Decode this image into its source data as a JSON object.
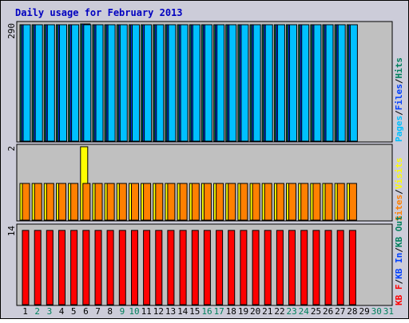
{
  "chart_data": {
    "type": "bar",
    "title": "Daily usage for February 2013",
    "days": [
      "1",
      "2",
      "3",
      "4",
      "5",
      "6",
      "7",
      "8",
      "9",
      "10",
      "11",
      "12",
      "13",
      "14",
      "15",
      "16",
      "17",
      "18",
      "19",
      "20",
      "21",
      "22",
      "23",
      "24",
      "25",
      "26",
      "27",
      "28",
      "29",
      "30",
      "31"
    ],
    "weekend_days": [
      "2",
      "3",
      "9",
      "10",
      "16",
      "17",
      "23",
      "24",
      "30",
      "31"
    ],
    "panels": [
      {
        "id": "top",
        "max_label": "290",
        "ylim": [
          0,
          290
        ],
        "legend": [
          {
            "label": "Hits",
            "color": "#00805c"
          },
          {
            "label": "/",
            "color": "#000000"
          },
          {
            "label": "Files",
            "color": "#0040ff"
          },
          {
            "label": "/",
            "color": "#000000"
          },
          {
            "label": "Pages",
            "color": "#00c0ff"
          }
        ],
        "series": [
          {
            "name": "Hits",
            "color": "#00805c",
            "values": [
              288,
              288,
              288,
              288,
              288,
              290,
              288,
              288,
              288,
              288,
              288,
              288,
              288,
              288,
              288,
              288,
              288,
              288,
              288,
              288,
              288,
              288,
              288,
              288,
              288,
              288,
              288,
              288
            ]
          },
          {
            "name": "Files",
            "color": "#0040ff",
            "values": [
              288,
              288,
              288,
              288,
              288,
              290,
              288,
              288,
              288,
              288,
              288,
              288,
              288,
              288,
              288,
              288,
              288,
              288,
              288,
              288,
              288,
              288,
              288,
              288,
              288,
              288,
              288,
              288
            ]
          },
          {
            "name": "Pages",
            "color": "#00c0ff",
            "values": [
              288,
              288,
              288,
              288,
              288,
              288,
              288,
              288,
              288,
              288,
              288,
              288,
              288,
              288,
              288,
              288,
              288,
              288,
              288,
              288,
              288,
              288,
              288,
              288,
              288,
              288,
              288,
              288
            ]
          }
        ]
      },
      {
        "id": "middle",
        "max_label": "2",
        "ylim": [
          0,
          2
        ],
        "legend": [
          {
            "label": "Visits",
            "color": "#ffff00"
          },
          {
            "label": "/",
            "color": "#000000"
          },
          {
            "label": "Sites",
            "color": "#ff8000"
          }
        ],
        "series": [
          {
            "name": "Visits",
            "color": "#ffff00",
            "values": [
              1,
              1,
              1,
              1,
              1,
              2,
              1,
              1,
              1,
              1,
              1,
              1,
              1,
              1,
              1,
              1,
              1,
              1,
              1,
              1,
              1,
              1,
              1,
              1,
              1,
              1,
              1,
              1
            ]
          },
          {
            "name": "Sites",
            "color": "#ff8000",
            "values": [
              1,
              1,
              1,
              1,
              1,
              1,
              1,
              1,
              1,
              1,
              1,
              1,
              1,
              1,
              1,
              1,
              1,
              1,
              1,
              1,
              1,
              1,
              1,
              1,
              1,
              1,
              1,
              1
            ]
          }
        ]
      },
      {
        "id": "bottom",
        "max_label": "14",
        "ylim": [
          0,
          14
        ],
        "legend": [
          {
            "label": "KB Out",
            "color": "#00805c"
          },
          {
            "label": "/",
            "color": "#000000"
          },
          {
            "label": "KB In",
            "color": "#0040ff"
          },
          {
            "label": "/",
            "color": "#000000"
          },
          {
            "label": "KB F",
            "color": "#ff0000"
          }
        ],
        "series": [
          {
            "name": "KB F",
            "color": "#ff0000",
            "values": [
              13.3,
              13.3,
              13.3,
              13.3,
              13.3,
              13.3,
              13.3,
              13.3,
              13.3,
              13.3,
              13.3,
              13.3,
              13.3,
              13.3,
              13.3,
              13.3,
              13.3,
              13.3,
              13.3,
              13.3,
              13.3,
              13.3,
              13.3,
              13.3,
              13.3,
              13.3,
              13.3,
              13.3
            ]
          }
        ]
      }
    ],
    "colors": {
      "frame_bg": "#ccccd9",
      "plot_bg": "#c0c0c0",
      "title": "#0000c0",
      "weekday_label": "#000000",
      "weekend_label": "#00805c"
    }
  }
}
